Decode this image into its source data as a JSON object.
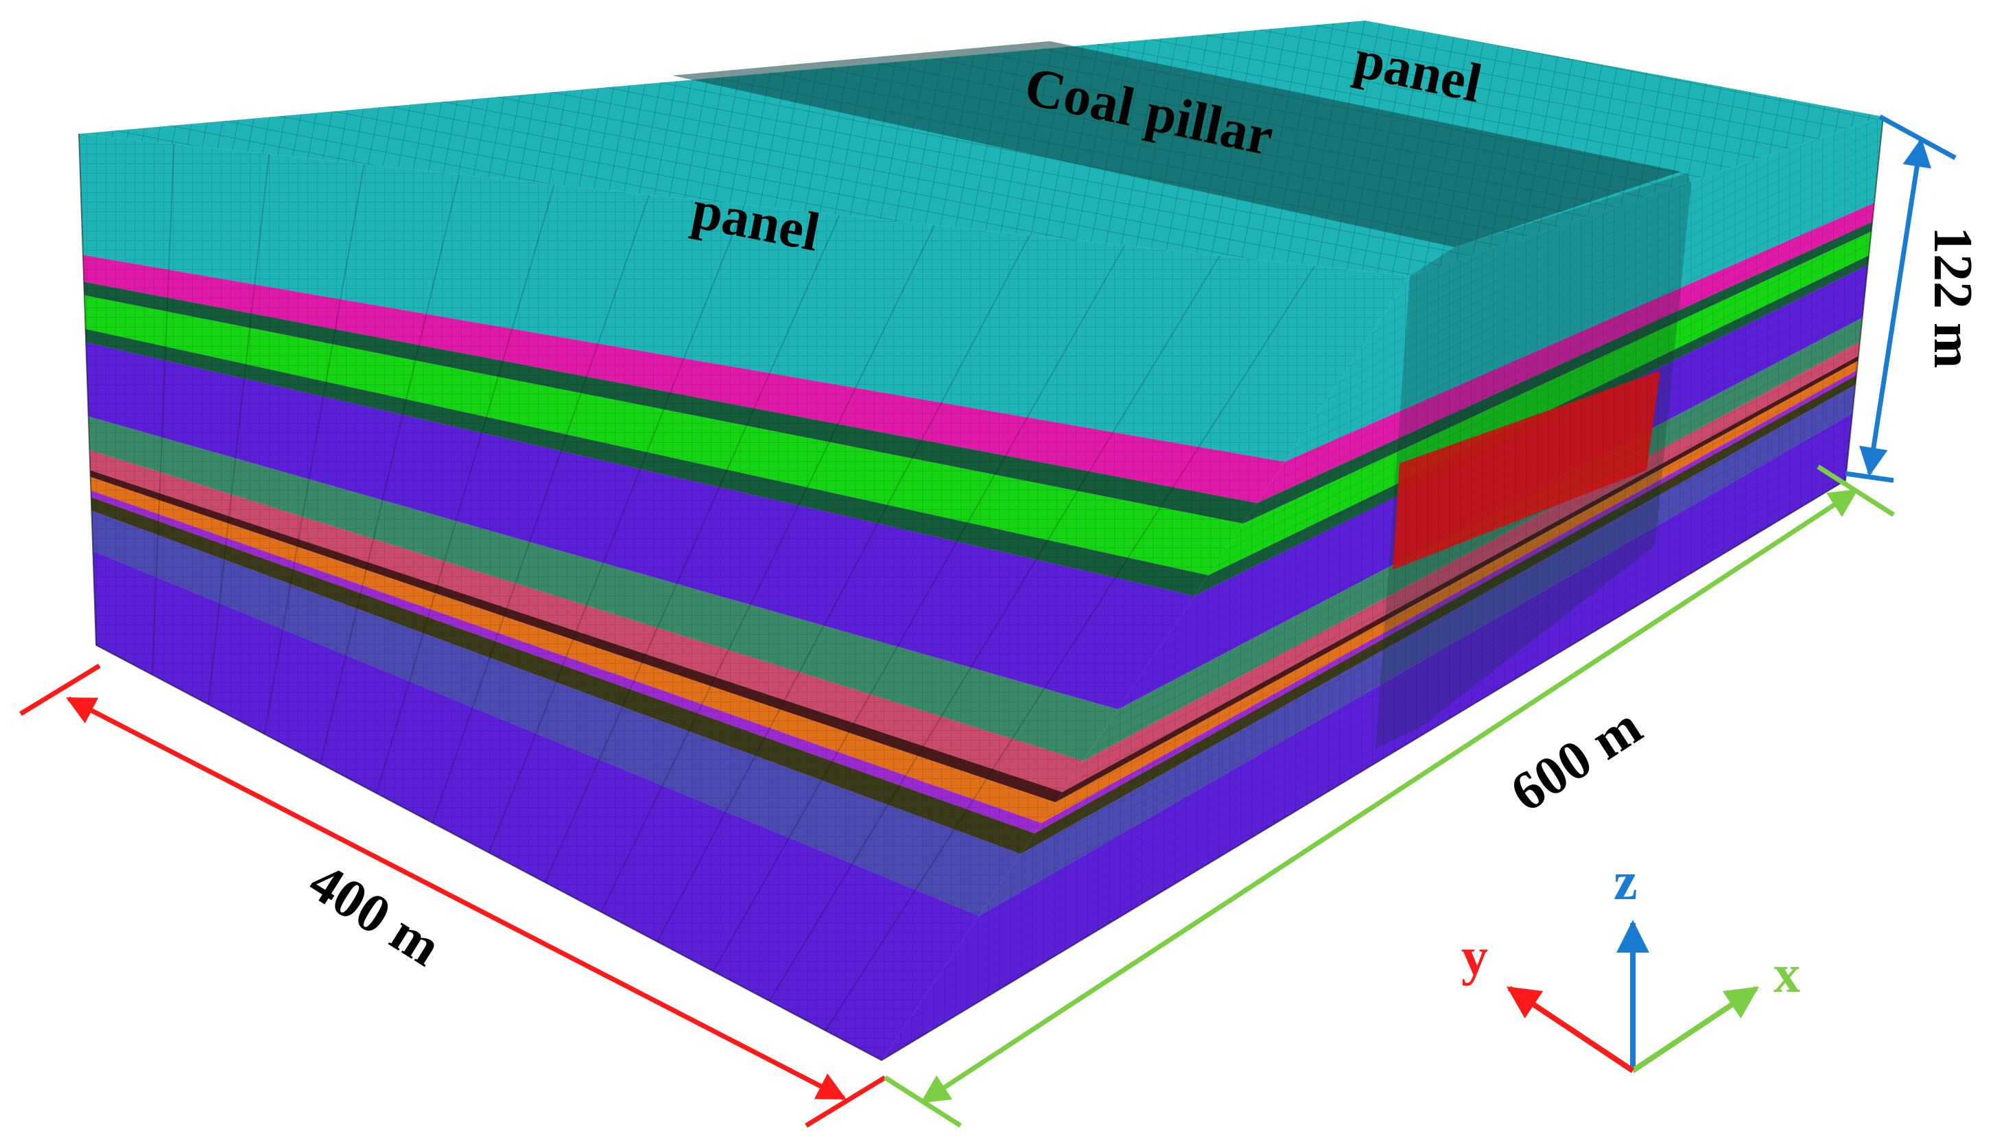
{
  "labels": {
    "panel_left": "panel",
    "panel_right": "panel",
    "coal_pillar": "Coal pillar",
    "width": "400 m",
    "length": "600 m",
    "height": "122 m"
  },
  "axes": {
    "x": "x",
    "y": "y",
    "z": "z"
  },
  "colors": {
    "top_surface": "#19b2b2",
    "pillar_band": "#0f3f3f",
    "x_arrow": "#7ccf44",
    "y_arrow": "#ff1a1a",
    "z_arrow": "#1a7cd0",
    "outline": "#000000"
  },
  "strata": [
    {
      "name": "teal-top",
      "thickness": 18,
      "color": "#1fb5b7"
    },
    {
      "name": "magenta",
      "thickness": 4,
      "color": "#e01aa8"
    },
    {
      "name": "dark-green-1",
      "thickness": 2,
      "color": "#155a3a"
    },
    {
      "name": "green",
      "thickness": 5,
      "color": "#14d414"
    },
    {
      "name": "dark-green-2",
      "thickness": 2,
      "color": "#155a3a"
    },
    {
      "name": "blue-violet-1",
      "thickness": 11,
      "color": "#5a1fd6"
    },
    {
      "name": "slate-green",
      "thickness": 5,
      "color": "#3a8a6a"
    },
    {
      "name": "rose",
      "thickness": 3,
      "color": "#c94a6a"
    },
    {
      "name": "dark-maroon",
      "thickness": 1,
      "color": "#4a1a1a"
    },
    {
      "name": "orange",
      "thickness": 2,
      "color": "#e0701a"
    },
    {
      "name": "purple-thin",
      "thickness": 1,
      "color": "#9a2ad0"
    },
    {
      "name": "dark-olive",
      "thickness": 2,
      "color": "#3a3a1a"
    },
    {
      "name": "slate-blue",
      "thickness": 6,
      "color": "#4a4ab0"
    },
    {
      "name": "blue-violet-2",
      "thickness": 14,
      "color": "#5a1fd6"
    }
  ]
}
